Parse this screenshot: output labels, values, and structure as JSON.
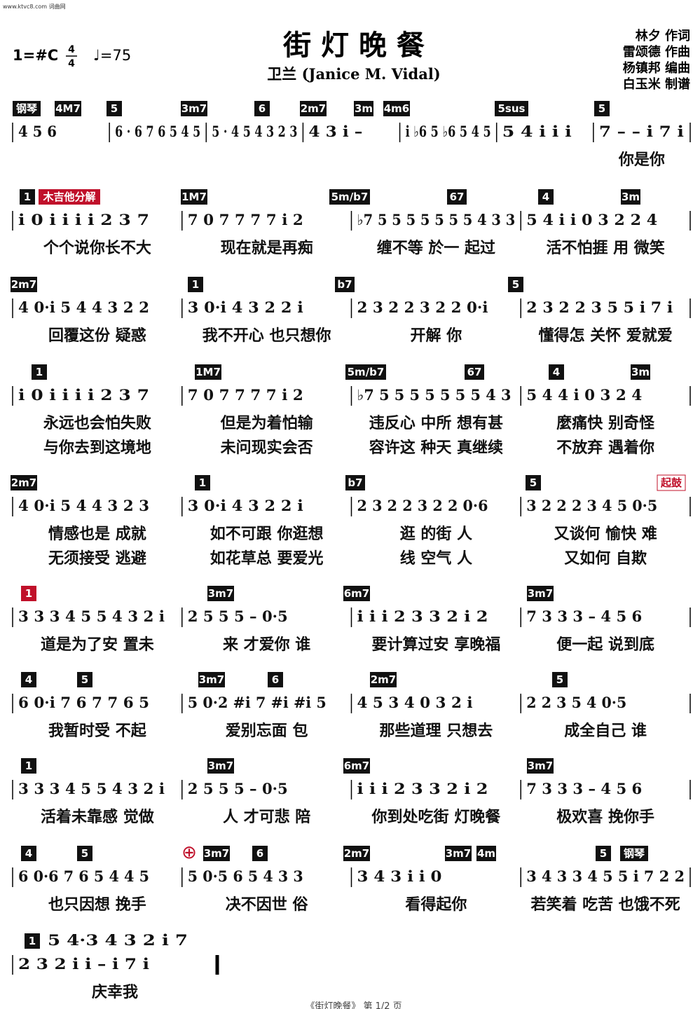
{
  "header": {
    "site": "www.ktvc8.com 词曲网",
    "key": "1=#C",
    "time_top": "4",
    "time_bottom": "4",
    "tempo": "♩=75",
    "title": "街 灯 晚 餐",
    "artist": "卫兰 (Janice M. Vidal)",
    "credits": [
      "林夕 作词",
      "雷颂德 作曲",
      "杨镇邦 编曲",
      "白玉米 制谱"
    ]
  },
  "rows": [
    {
      "chords": [
        "钢琴",
        "4M7",
        "5",
        "3m7",
        "6",
        "2m7",
        "3m",
        "4m6",
        "5sus",
        "5"
      ],
      "measures": [
        "4 5 6",
        "6 · 6 7 6 5 4 5",
        "5 · 4 5 4 3 2 3",
        "4 3 i –",
        "i ♭6 5 ♭6 5 4 5",
        "5 4 i i i",
        "7 – – i 7 i"
      ],
      "lyrics": [
        [
          "",
          "",
          "",
          "",
          "",
          "",
          "你是你"
        ]
      ]
    },
    {
      "chords": [
        "1",
        "木吉他分解",
        "1M7",
        "5m/b7",
        "67",
        "4",
        "3m"
      ],
      "measures": [
        "i 0 i i i i 2 3 7",
        "7 0 7 7 7 7 i 2",
        "♭7 5 5 5 5 5 5 5 4 3 3",
        "5 4 i i 0 3 2 2 4"
      ],
      "lyrics": [
        [
          "个个说你长不大",
          "现在就是再痴",
          "缠不等 於一 起过",
          "活不怕捱 用 微笑"
        ]
      ]
    },
    {
      "chords": [
        "2m7",
        "1",
        "b7",
        "5"
      ],
      "measures": [
        "4 0·i 5 4 4 3 2 2",
        "3 0·i 4 3 2 2 i",
        "2 3 2 2 3 2 2 0·i",
        "2 3 2 2 3 5 5 i 7 i"
      ],
      "lyrics": [
        [
          "回覆这份 疑惑",
          "我不开心 也只想你",
          "开解 你",
          "懂得怎 关怀 爱就爱"
        ]
      ]
    },
    {
      "chords": [
        "1",
        "1M7",
        "5m/b7",
        "67",
        "4",
        "3m"
      ],
      "measures": [
        "i 0 i i i i 2 3 7",
        "7 0 7 7 7 7 i 2",
        "♭7 5 5 5 5 5 5 5 4 3",
        "5 4 4 i 0 3 2 4"
      ],
      "lyrics": [
        [
          "永远也会怕失败",
          "但是为着怕输",
          "违反心 中所 想有甚",
          "麼痛快 别奇怪"
        ],
        [
          "与你去到这境地",
          "未问现实会否",
          "容许这 种天 真继续",
          "不放弃 遇着你"
        ]
      ]
    },
    {
      "chords": [
        "2m7",
        "1",
        "b7",
        "5",
        "起鼓"
      ],
      "measures": [
        "4 0·i 5 4 4 3 2 3",
        "3 0·i 4 3 2 2 i",
        "2 3 2 2 3 2 2 0·6",
        "3 2 2 2 3 4 5 0·5"
      ],
      "lyrics": [
        [
          "情感也是 成就",
          "如不可跟 你逛想",
          "逛 的街 人",
          "又谈何 愉快 难"
        ],
        [
          "无须接受 逃避",
          "如花草总 要爱光",
          "线 空气 人",
          "又如何 自欺"
        ]
      ]
    },
    {
      "chords": [
        "1",
        "3m7",
        "6m7",
        "3m7"
      ],
      "measures": [
        "3 3 3 4 5 5 4 3 2 i",
        "2 5 5 5 – 0·5",
        "i i i 2 3 3 2 i 2",
        "7 3 3 3 – 4 5 6"
      ],
      "lyrics": [
        [
          "道是为了安 置未",
          "来 才爱你 谁",
          "要计算过安 享晚福",
          "便一起 说到底"
        ]
      ]
    },
    {
      "chords": [
        "4",
        "5",
        "3m7",
        "6",
        "2m7",
        "5"
      ],
      "measures": [
        "6 0·i 7 6 7 7 6 5",
        "5 0·2 #i 7 #i #i 5",
        "4 5 3 4 0 3 2 i",
        "2 2 3 5 4 0·5"
      ],
      "lyrics": [
        [
          "我暂时受 不起",
          "爱别忘面 包",
          "那些道理 只想去",
          "成全自己 谁"
        ]
      ]
    },
    {
      "chords": [
        "1",
        "3m7",
        "6m7",
        "3m7"
      ],
      "measures": [
        "3 3 3 4 5 5 4 3 2 i",
        "2 5 5 5 – 0·5",
        "i i i 2 3 3 2 i 2",
        "7 3 3 3 – 4 5 6"
      ],
      "lyrics": [
        [
          "活着未靠感 觉做",
          "人 才可悲 陪",
          "你到处吃街 灯晚餐",
          "极欢喜 挽你手"
        ]
      ]
    },
    {
      "chords": [
        "4",
        "5",
        "⊕",
        "3m7",
        "6",
        "2m7",
        "3m7",
        "4m",
        "5",
        "钢琴"
      ],
      "measures": [
        "6 0·6 7 6 5 4 4 5",
        "5 0·5 6 5 4 3 3",
        "3 4 3 i i 0",
        "3 4 3 3 4 5 5 i 7 2 2"
      ],
      "lyrics": [
        [
          "也只因想 挽手",
          "决不因世 俗",
          "看得起你",
          "若笑着 吃苦 也饿不死"
        ]
      ]
    },
    {
      "chords": [
        "1"
      ],
      "upper": "5 4·3 4 3 2 i 7",
      "measures": [
        "2 3 2 i i – i 7 i"
      ],
      "lyrics": [
        [
          "庆幸我"
        ]
      ]
    }
  ],
  "footer": "《街灯晚餐》 第 1/2 页"
}
